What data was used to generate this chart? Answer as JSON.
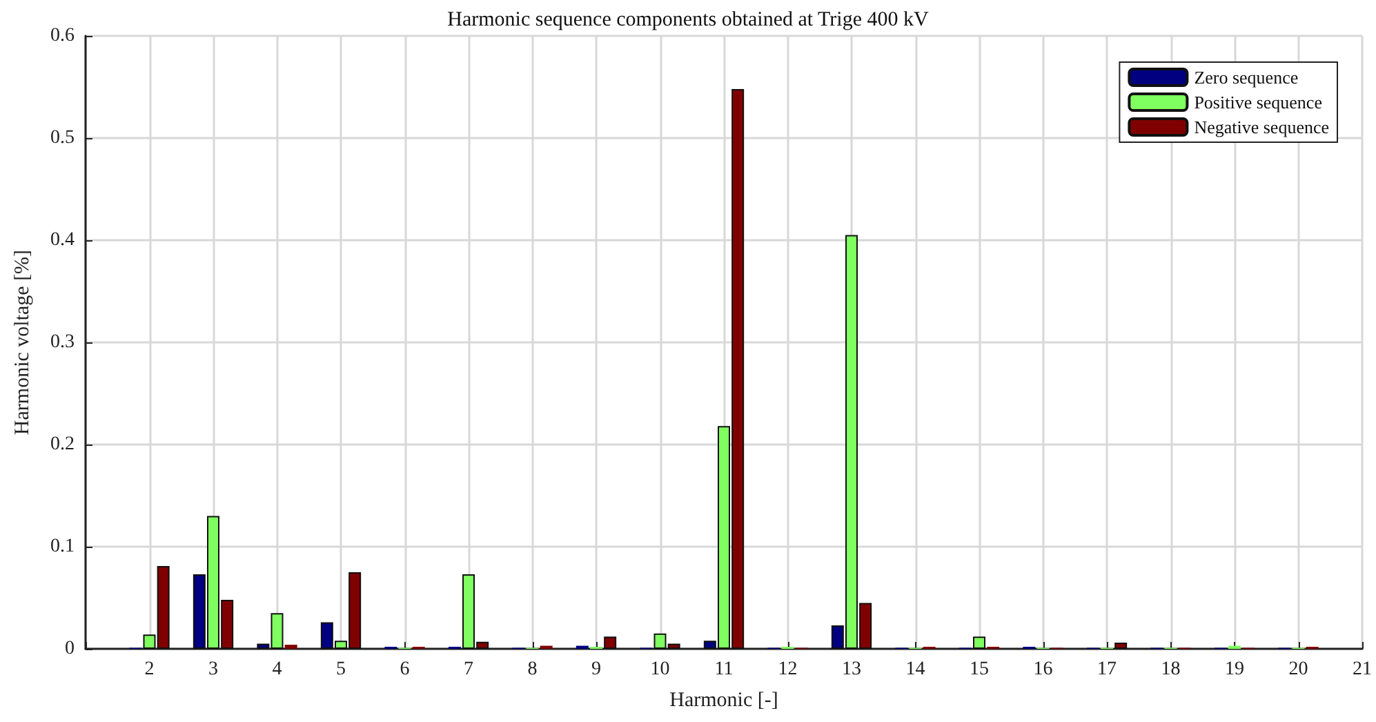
{
  "chart_data": {
    "type": "bar",
    "title": "Harmonic sequence components obtained at Trige 400 kV",
    "xlabel": "Harmonic [-]",
    "ylabel": "Harmonic voltage [%]",
    "x": [
      2,
      3,
      4,
      5,
      6,
      7,
      8,
      9,
      10,
      11,
      12,
      13,
      14,
      15,
      16,
      17,
      18,
      19,
      20
    ],
    "series": [
      {
        "name": "Zero sequence",
        "color": "#000080",
        "values": [
          0.001,
          0.073,
          0.005,
          0.026,
          0.002,
          0.002,
          0.001,
          0.003,
          0.001,
          0.008,
          0.001,
          0.023,
          0.001,
          0.001,
          0.002,
          0.001,
          0.001,
          0.001,
          0.001
        ]
      },
      {
        "name": "Positive sequence",
        "color": "#80ff60",
        "values": [
          0.014,
          0.13,
          0.035,
          0.008,
          0.001,
          0.073,
          0.001,
          0.002,
          0.015,
          0.218,
          0.002,
          0.405,
          0.001,
          0.012,
          0.001,
          0.001,
          0.001,
          0.003,
          0.001
        ]
      },
      {
        "name": "Negative sequence",
        "color": "#800000",
        "values": [
          0.081,
          0.048,
          0.004,
          0.075,
          0.002,
          0.007,
          0.003,
          0.012,
          0.005,
          0.548,
          0.001,
          0.045,
          0.002,
          0.002,
          0.001,
          0.006,
          0.001,
          0.001,
          0.002
        ]
      }
    ],
    "xlim": [
      1,
      21
    ],
    "xticks": [
      {
        "value": 1,
        "label": null
      },
      2,
      3,
      4,
      5,
      6,
      7,
      8,
      9,
      10,
      11,
      12,
      13,
      14,
      15,
      16,
      17,
      18,
      19,
      20,
      21
    ],
    "ylim": [
      0,
      0.6
    ],
    "yticks": [
      0,
      0.1,
      0.2,
      0.3,
      0.4,
      0.5,
      0.6
    ],
    "grid": true,
    "legend": "top right"
  }
}
